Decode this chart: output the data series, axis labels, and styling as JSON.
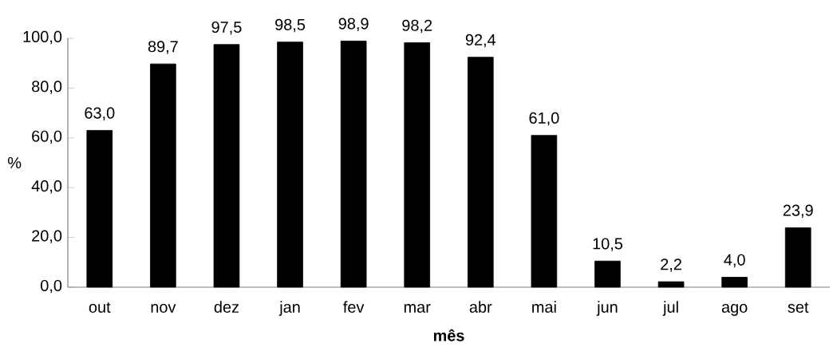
{
  "chart_data": {
    "type": "bar",
    "xlabel": "mês",
    "ylabel": "%",
    "categories": [
      "out",
      "nov",
      "dez",
      "jan",
      "fev",
      "mar",
      "abr",
      "mai",
      "jun",
      "jul",
      "ago",
      "set"
    ],
    "values": [
      63.0,
      89.7,
      97.5,
      98.5,
      98.9,
      98.2,
      92.4,
      61.0,
      10.5,
      2.2,
      4.0,
      23.9
    ],
    "value_labels": [
      "63,0",
      "89,7",
      "97,5",
      "98,5",
      "98,9",
      "98,2",
      "92,4",
      "61,0",
      "10,5",
      "2,2",
      "4,0",
      "23,9"
    ],
    "color": "#000000",
    "ylim": [
      0,
      100
    ],
    "yticks": [
      {
        "value": 0,
        "label": "0,0"
      },
      {
        "value": 20,
        "label": "20,0"
      },
      {
        "value": 40,
        "label": "40,0"
      },
      {
        "value": 60,
        "label": "60,0"
      },
      {
        "value": 80,
        "label": "80,0"
      },
      {
        "value": 100,
        "label": "100,0"
      }
    ]
  }
}
